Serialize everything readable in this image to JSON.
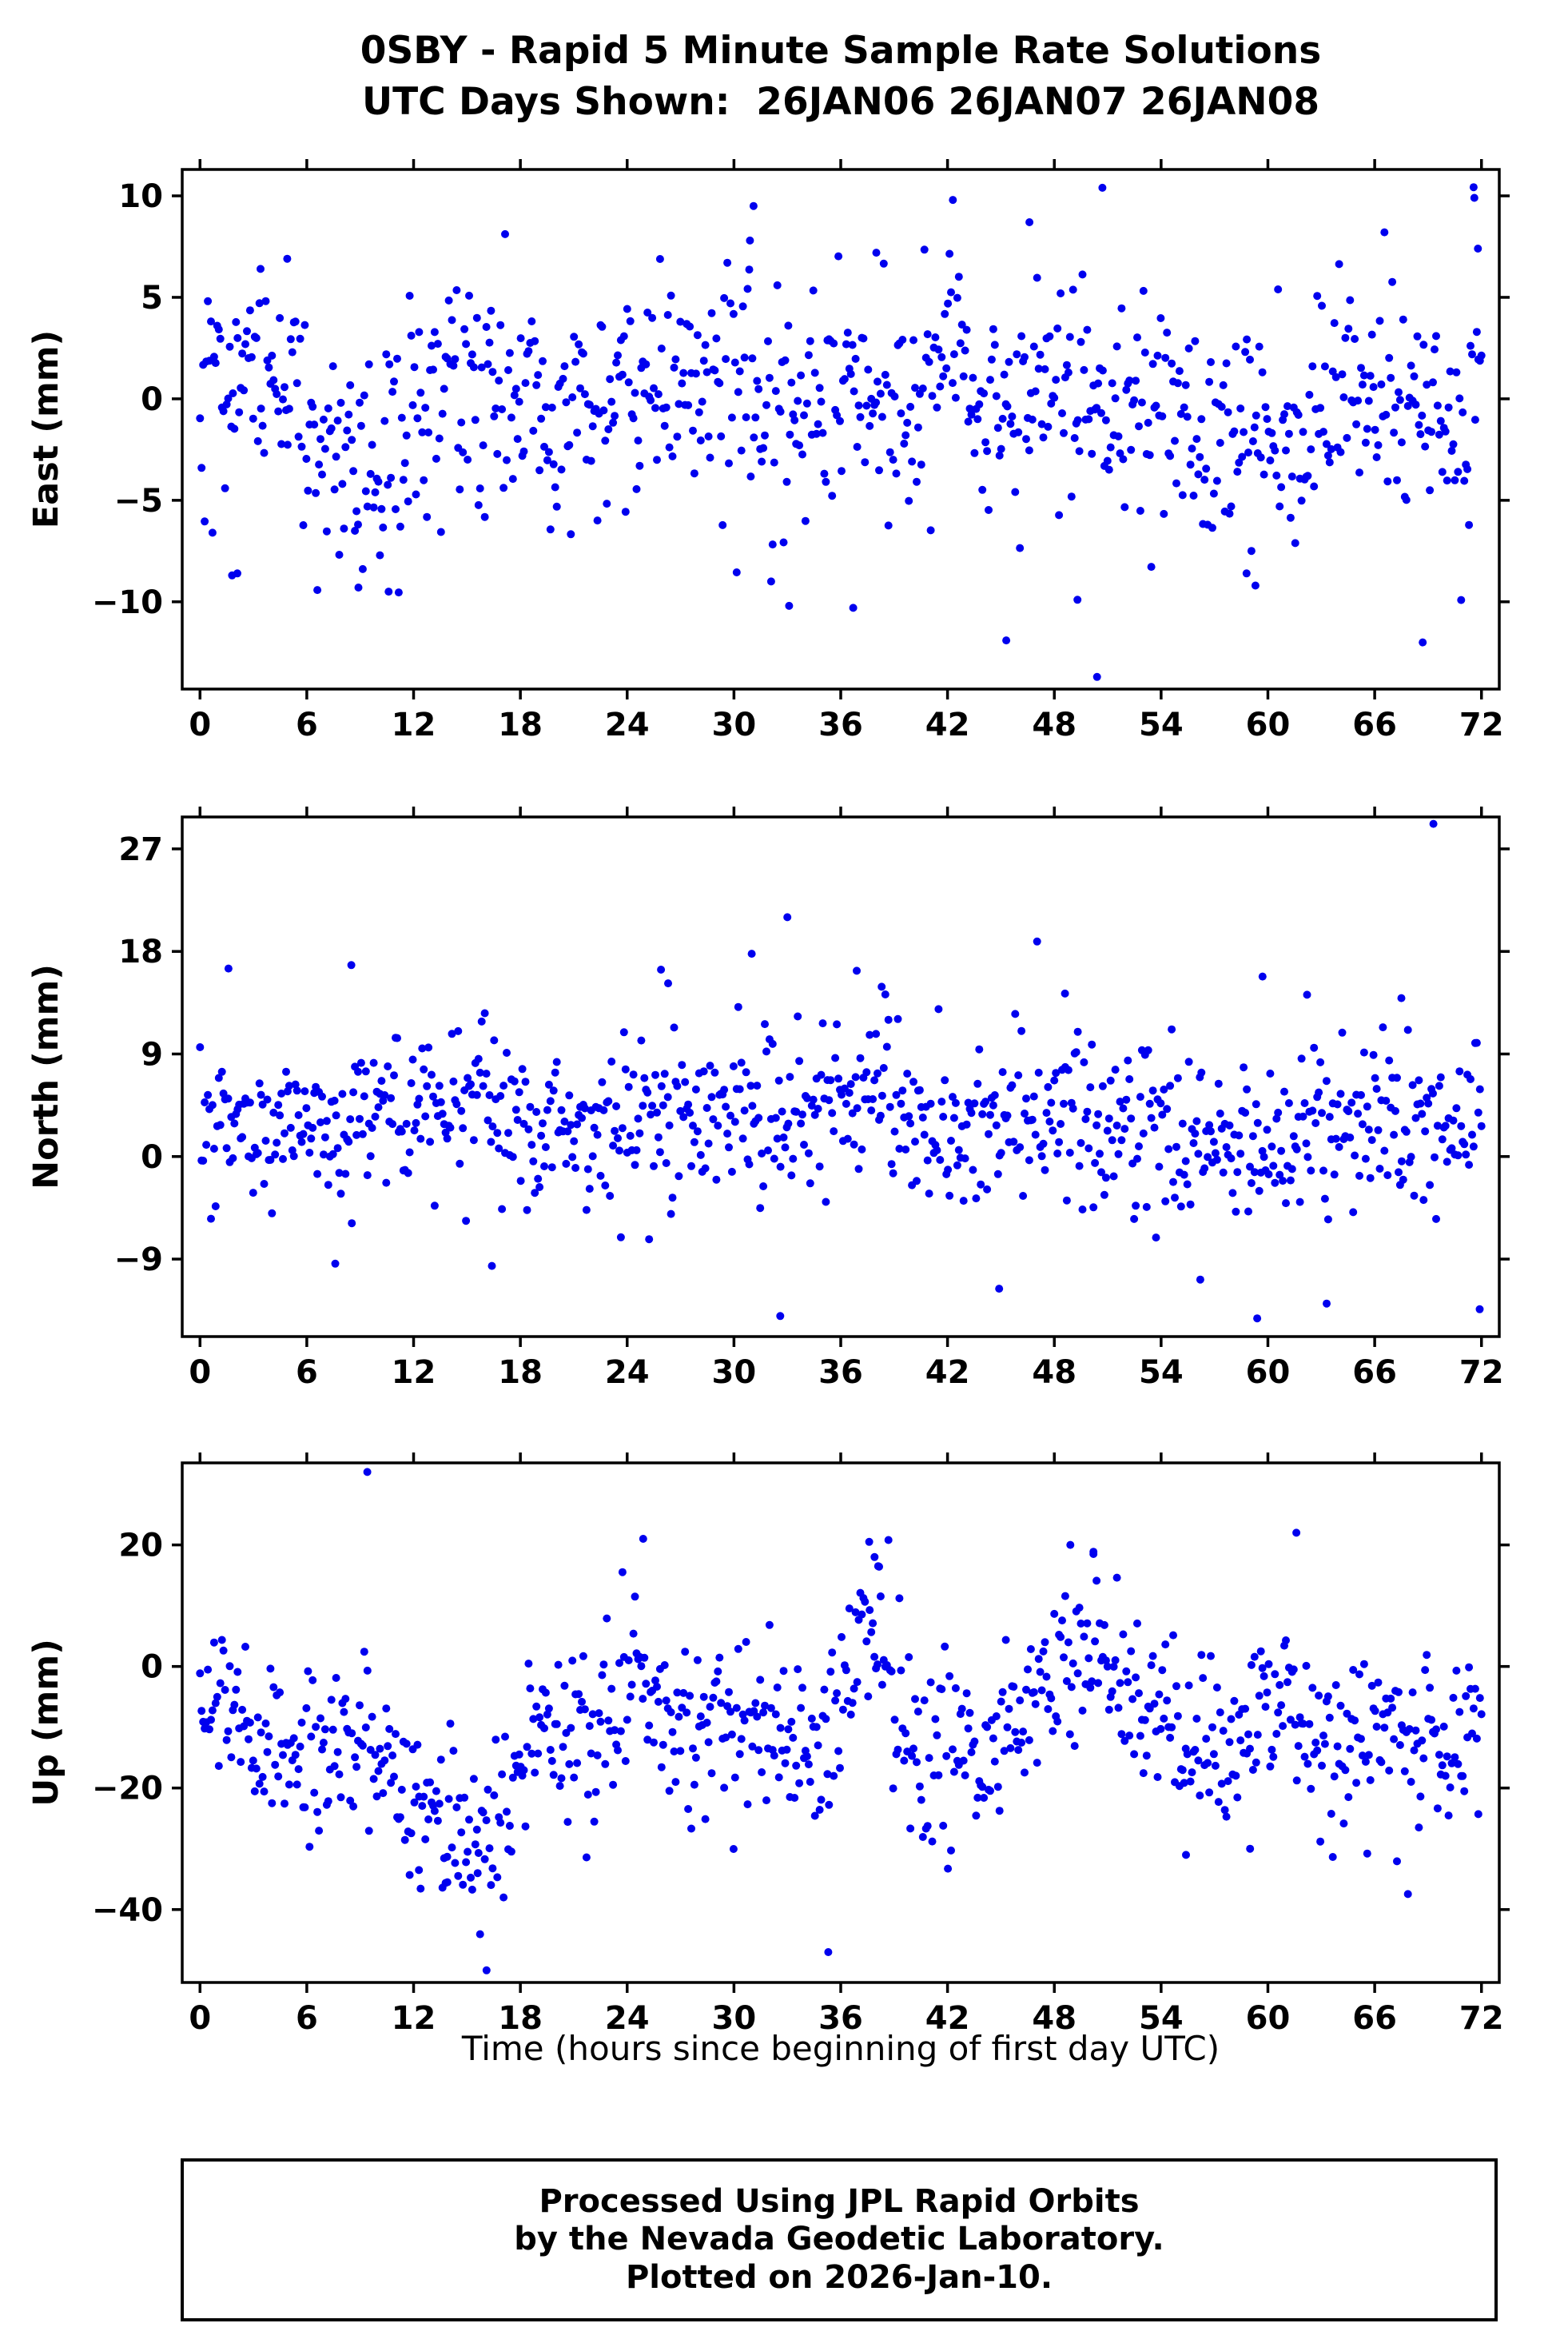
{
  "title": {
    "line1": "0SBY - Rapid 5 Minute Sample Rate Solutions",
    "line2": "UTC Days Shown:  26JAN06 26JAN07 26JAN08"
  },
  "footer": {
    "line1": "Processed Using JPL Rapid Orbits",
    "line2": "by the Nevada Geodetic Laboratory.",
    "line3": "Plotted on 2026-Jan-10."
  },
  "chart_data": {
    "type": "scatter",
    "station": "0SBY",
    "title": "0SBY - Rapid 5 Minute Sample Rate Solutions",
    "subtitle": "UTC Days Shown:  26JAN06 26JAN07 26JAN08",
    "days_shown": [
      "26JAN06",
      "26JAN07",
      "26JAN08"
    ],
    "xlabel": "Time (hours since beginning of first day UTC)",
    "x_range": [
      -1,
      73
    ],
    "x_ticks": [
      0,
      6,
      12,
      18,
      24,
      30,
      36,
      42,
      48,
      54,
      60,
      66,
      72
    ],
    "sample_interval_minutes": 5,
    "duration_hours": 72,
    "marker_color": "#0000ee",
    "grid": false,
    "legend": "none",
    "panels": [
      {
        "name": "east",
        "ylabel": "East (mm)",
        "ylim": [
          -14.3,
          11.3
        ],
        "yticks": [
          -10,
          -5,
          0,
          5,
          10
        ],
        "n_points": 820,
        "seed": 101,
        "noise_std": 2.9,
        "trend": [
          [
            0,
            -1.5
          ],
          [
            2,
            1.5
          ],
          [
            4,
            2.0
          ],
          [
            6,
            0.5
          ],
          [
            8,
            -3.0
          ],
          [
            10,
            -3.5
          ],
          [
            12,
            -1.0
          ],
          [
            14,
            0.5
          ],
          [
            16,
            -0.5
          ],
          [
            18,
            0.5
          ],
          [
            20,
            -1.0
          ],
          [
            22,
            0.0
          ],
          [
            24,
            0.0
          ],
          [
            26,
            1.0
          ],
          [
            28,
            1.5
          ],
          [
            30,
            1.5
          ],
          [
            32,
            -1.0
          ],
          [
            34,
            -0.5
          ],
          [
            36,
            0.0
          ],
          [
            38,
            0.5
          ],
          [
            40,
            0.5
          ],
          [
            42,
            1.5
          ],
          [
            44,
            0.5
          ],
          [
            46,
            -0.5
          ],
          [
            48,
            1.0
          ],
          [
            50,
            0.0
          ],
          [
            52,
            -1.0
          ],
          [
            54,
            -0.5
          ],
          [
            56,
            -1.5
          ],
          [
            58,
            -2.5
          ],
          [
            60,
            -2.0
          ],
          [
            62,
            -1.5
          ],
          [
            64,
            0.0
          ],
          [
            66,
            0.5
          ],
          [
            68,
            -1.5
          ],
          [
            70,
            -1.0
          ],
          [
            72,
            1.5
          ]
        ],
        "outliers": [
          [
            31.1,
            9.5
          ],
          [
            30.9,
            7.8
          ],
          [
            42.3,
            9.8
          ],
          [
            50.7,
            10.4
          ],
          [
            71.6,
            9.9
          ],
          [
            71.8,
            7.4
          ],
          [
            46.6,
            8.7
          ],
          [
            38.0,
            7.2
          ],
          [
            4.9,
            6.9
          ],
          [
            3.4,
            6.4
          ],
          [
            50.4,
            -13.7
          ],
          [
            45.3,
            -11.9
          ],
          [
            68.7,
            -12.0
          ],
          [
            33.1,
            -10.2
          ],
          [
            36.7,
            -10.3
          ],
          [
            49.3,
            -9.9
          ],
          [
            2.1,
            -8.6
          ],
          [
            1.8,
            -8.7
          ],
          [
            8.9,
            -9.3
          ],
          [
            10.6,
            -9.5
          ],
          [
            59.3,
            -9.2
          ],
          [
            58.8,
            -8.6
          ]
        ]
      },
      {
        "name": "north",
        "ylabel": "North (mm)",
        "ylim": [
          -15.8,
          29.8
        ],
        "yticks": [
          -9,
          0,
          9,
          18,
          27
        ],
        "n_points": 820,
        "seed": 202,
        "noise_std": 3.6,
        "trend": [
          [
            0,
            2.5
          ],
          [
            2,
            1.5
          ],
          [
            4,
            2.5
          ],
          [
            6,
            3.5
          ],
          [
            8,
            3.0
          ],
          [
            10,
            3.5
          ],
          [
            12,
            4.0
          ],
          [
            14,
            5.5
          ],
          [
            16,
            5.0
          ],
          [
            18,
            3.0
          ],
          [
            20,
            3.5
          ],
          [
            22,
            3.0
          ],
          [
            24,
            2.5
          ],
          [
            26,
            4.0
          ],
          [
            28,
            3.5
          ],
          [
            30,
            3.0
          ],
          [
            32,
            3.5
          ],
          [
            34,
            4.5
          ],
          [
            36,
            4.0
          ],
          [
            38,
            5.0
          ],
          [
            40,
            2.5
          ],
          [
            42,
            2.0
          ],
          [
            44,
            3.0
          ],
          [
            46,
            3.5
          ],
          [
            48,
            4.0
          ],
          [
            50,
            3.0
          ],
          [
            52,
            2.5
          ],
          [
            54,
            2.0
          ],
          [
            56,
            3.0
          ],
          [
            58,
            1.5
          ],
          [
            60,
            2.5
          ],
          [
            62,
            2.0
          ],
          [
            64,
            3.5
          ],
          [
            66,
            3.0
          ],
          [
            68,
            3.5
          ],
          [
            70,
            3.0
          ],
          [
            72,
            3.5
          ]
        ],
        "outliers": [
          [
            69.3,
            29.2
          ],
          [
            33.0,
            21.0
          ],
          [
            8.5,
            16.8
          ],
          [
            1.6,
            16.5
          ],
          [
            25.9,
            16.4
          ],
          [
            26.3,
            15.2
          ],
          [
            31.0,
            17.8
          ],
          [
            36.9,
            16.3
          ],
          [
            38.3,
            14.9
          ],
          [
            59.7,
            15.8
          ],
          [
            62.2,
            14.2
          ],
          [
            67.5,
            13.9
          ],
          [
            48.6,
            14.3
          ],
          [
            32.6,
            -14.0
          ],
          [
            59.4,
            -14.2
          ],
          [
            63.3,
            -12.9
          ],
          [
            71.9,
            -13.4
          ],
          [
            44.9,
            -11.6
          ],
          [
            7.6,
            -9.4
          ],
          [
            16.4,
            -9.6
          ],
          [
            56.2,
            -10.8
          ]
        ]
      },
      {
        "name": "up",
        "ylabel": "Up (mm)",
        "ylim": [
          -52.0,
          33.5
        ],
        "yticks": [
          -40,
          -20,
          0,
          20
        ],
        "n_points": 820,
        "seed": 303,
        "noise_std": 7.0,
        "trend": [
          [
            0,
            -2
          ],
          [
            2,
            -7
          ],
          [
            4,
            -13
          ],
          [
            6,
            -14
          ],
          [
            8,
            -12
          ],
          [
            10,
            -18
          ],
          [
            12,
            -22
          ],
          [
            14,
            -26
          ],
          [
            16,
            -27
          ],
          [
            18,
            -15
          ],
          [
            20,
            -13
          ],
          [
            22,
            -10
          ],
          [
            24,
            -5
          ],
          [
            25,
            -3
          ],
          [
            26,
            -8
          ],
          [
            28,
            -14
          ],
          [
            30,
            -11
          ],
          [
            32,
            -9
          ],
          [
            34,
            -15
          ],
          [
            35,
            -20
          ],
          [
            36,
            -8
          ],
          [
            37,
            3
          ],
          [
            38,
            8
          ],
          [
            39,
            -4
          ],
          [
            40,
            -15
          ],
          [
            42,
            -16
          ],
          [
            44,
            -13
          ],
          [
            46,
            -11
          ],
          [
            48,
            -2
          ],
          [
            49,
            4
          ],
          [
            50,
            5
          ],
          [
            51,
            2
          ],
          [
            52,
            -4
          ],
          [
            53,
            -8
          ],
          [
            54,
            -6
          ],
          [
            55,
            -10
          ],
          [
            56,
            -13
          ],
          [
            57,
            -14
          ],
          [
            58,
            -12
          ],
          [
            59,
            -8
          ],
          [
            60,
            -6
          ],
          [
            61,
            -5
          ],
          [
            62,
            -9
          ],
          [
            63,
            -12
          ],
          [
            64,
            -16
          ],
          [
            65,
            -13
          ],
          [
            66,
            -10
          ],
          [
            67,
            -12
          ],
          [
            68,
            -14
          ],
          [
            69,
            -12
          ],
          [
            70,
            -17
          ],
          [
            71,
            -14
          ],
          [
            72,
            -8
          ]
        ],
        "outliers": [
          [
            9.4,
            32.0
          ],
          [
            24.9,
            21.0
          ],
          [
            37.6,
            20.5
          ],
          [
            37.9,
            18.0
          ],
          [
            38.1,
            16.5
          ],
          [
            61.6,
            22.0
          ],
          [
            48.9,
            20.0
          ],
          [
            50.2,
            18.5
          ],
          [
            16.1,
            -50.0
          ],
          [
            35.3,
            -47.0
          ],
          [
            13.9,
            -35.5
          ],
          [
            15.6,
            -34.0
          ],
          [
            12.3,
            -33.5
          ],
          [
            55.4,
            -31.0
          ],
          [
            59.0,
            -30.0
          ]
        ]
      }
    ]
  }
}
